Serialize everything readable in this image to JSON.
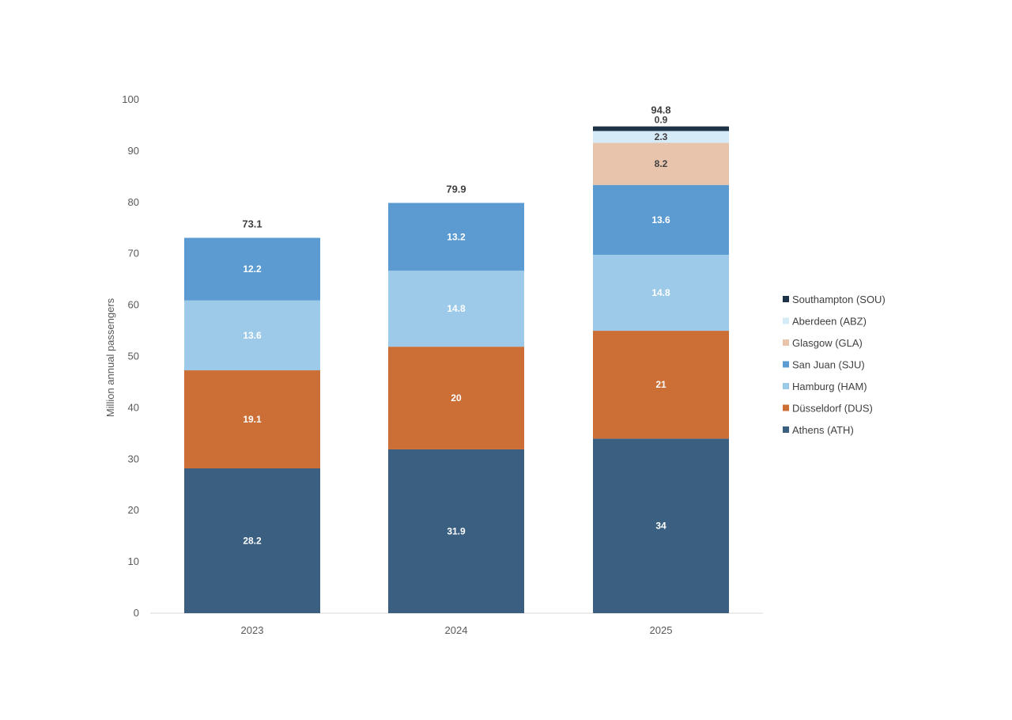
{
  "chart_data": {
    "type": "bar",
    "stacked": true,
    "title": "",
    "xlabel": "",
    "ylabel": "Million annual passengers",
    "ylim": [
      0,
      100
    ],
    "yticks": [
      0,
      10,
      20,
      30,
      40,
      50,
      60,
      70,
      80,
      90,
      100
    ],
    "categories": [
      "2023",
      "2024",
      "2025"
    ],
    "totals": [
      "73.1",
      "79.9",
      "94.8"
    ],
    "legend_position": "right",
    "grid": false,
    "series": [
      {
        "name": "Athens (ATH)",
        "color": "#3a5f80",
        "label_color": "#ffffff",
        "values": [
          28.2,
          31.9,
          34
        ]
      },
      {
        "name": "Düsseldorf (DUS)",
        "color": "#cc6f37",
        "label_color": "#ffffff",
        "values": [
          19.1,
          20,
          21
        ]
      },
      {
        "name": "Hamburg (HAM)",
        "color": "#9ccae8",
        "label_color": "#ffffff",
        "values": [
          13.6,
          14.8,
          14.8
        ]
      },
      {
        "name": "San Juan (SJU)",
        "color": "#5b9bd2",
        "label_color": "#ffffff",
        "values": [
          12.2,
          13.2,
          13.6
        ]
      },
      {
        "name": "Glasgow (GLA)",
        "color": "#e9c4ad",
        "label_color": "#404040",
        "values": [
          null,
          null,
          8.2
        ]
      },
      {
        "name": "Aberdeen (ABZ)",
        "color": "#d6ebf8",
        "label_color": "#404040",
        "values": [
          null,
          null,
          2.3
        ]
      },
      {
        "name": "Southampton (SOU)",
        "color": "#1f3347",
        "label_color": "#404040",
        "values": [
          null,
          null,
          0.9
        ]
      }
    ]
  }
}
